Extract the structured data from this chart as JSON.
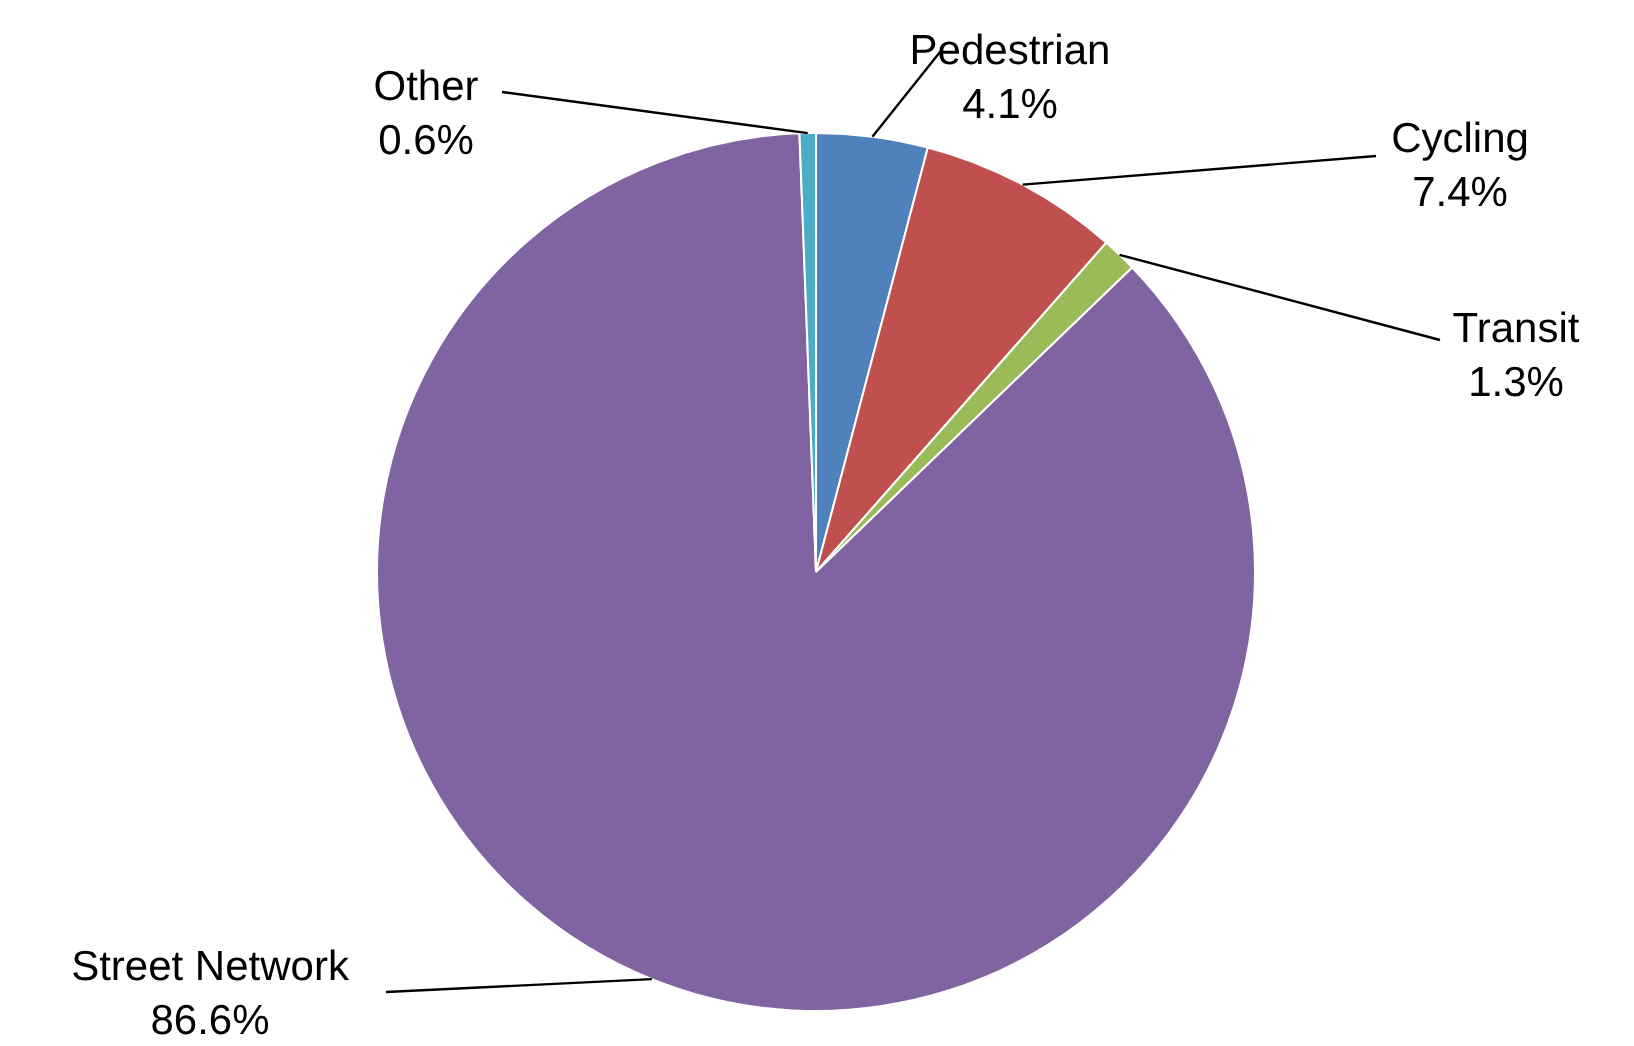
{
  "chart_data": {
    "type": "pie",
    "categories": [
      "Pedestrian",
      "Cycling",
      "Transit",
      "Street Network",
      "Other"
    ],
    "values": [
      4.1,
      7.4,
      1.3,
      86.6,
      0.6
    ],
    "colors": [
      "#4f81bd",
      "#c0504d",
      "#9bbb59",
      "#8064a2",
      "#4bacc6"
    ],
    "value_labels": [
      "4.1%",
      "7.4%",
      "1.3%",
      "86.6%",
      "0.6%"
    ],
    "legend": false
  }
}
